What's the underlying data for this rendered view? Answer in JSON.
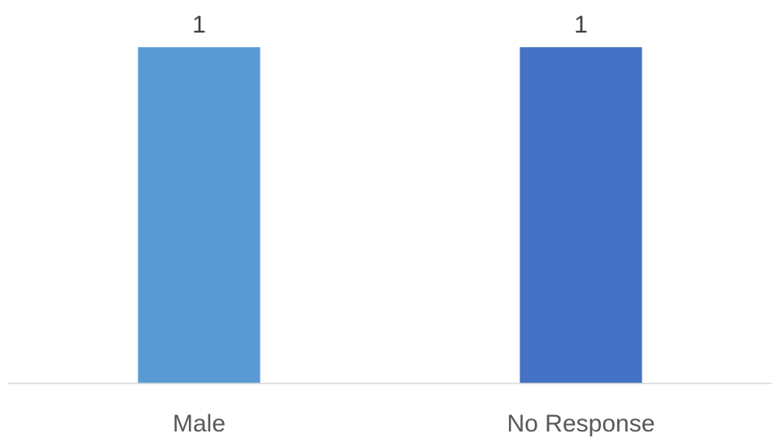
{
  "chart_data": {
    "type": "bar",
    "categories": [
      "Male",
      "No Response"
    ],
    "values": [
      1,
      1
    ],
    "data_labels": [
      "1",
      "1"
    ],
    "title": "",
    "xlabel": "",
    "ylabel": "",
    "ylim": [
      0,
      1
    ],
    "grid": false,
    "legend": "none",
    "colors": [
      "#5B9BD5",
      "#4472C4"
    ],
    "axis_color": "#D9D9D9"
  }
}
